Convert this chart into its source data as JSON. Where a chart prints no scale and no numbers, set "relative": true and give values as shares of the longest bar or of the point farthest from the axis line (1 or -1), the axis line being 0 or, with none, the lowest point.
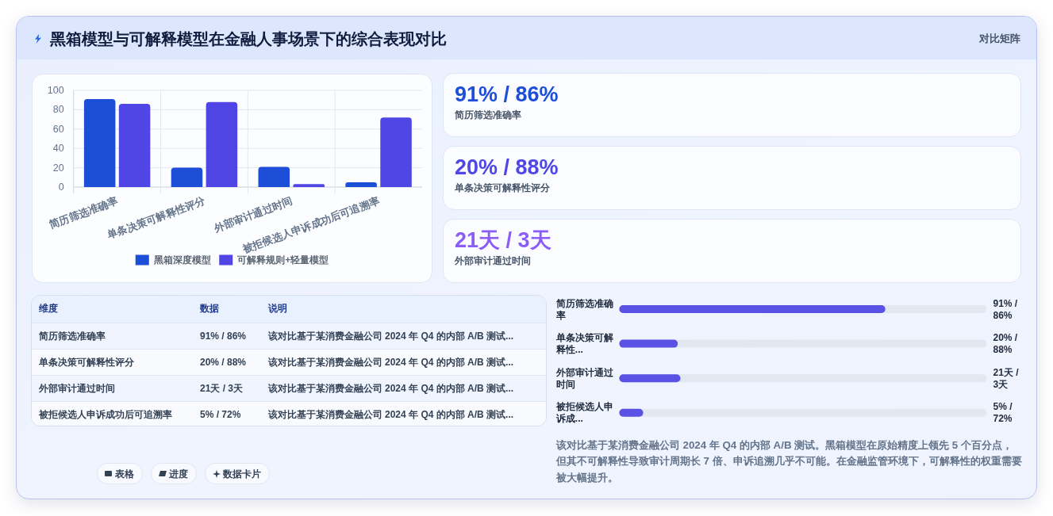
{
  "chart_data": [
    {
      "type": "other",
      "title": "黑箱模型与可解释模型在金融人事场景下的综合表现对比",
      "subtitle": "对比矩阵"
    },
    {
      "type": "bar",
      "categories": [
        "简历筛选准确率",
        "单条决策可解释性评分",
        "外部审计通过时间",
        "被拒候选人申诉成功后可追溯率"
      ],
      "series": [
        {
          "name": "黑箱深度模型",
          "color": "#1d4ed8",
          "values": [
            91,
            20,
            21,
            5
          ]
        },
        {
          "name": "可解释规则+轻量模型",
          "color": "#4f46e5",
          "values": [
            86,
            88,
            3,
            72
          ]
        }
      ],
      "ylim": [
        0,
        100
      ],
      "yticks": [
        0,
        20,
        40,
        60,
        80,
        100
      ],
      "grid": true,
      "legend": "bottom"
    },
    {
      "type": "other",
      "categories": [
        "简历筛选准确率",
        "单条决策可解释性评分",
        "外部审计通过时间"
      ],
      "value_labels": [
        "91% / 86%",
        "20% / 88%",
        "21天 / 3天"
      ]
    },
    {
      "type": "other",
      "categories": [
        "维度",
        "数据",
        "说明"
      ],
      "cell_labels": [
        [
          "简历筛选准确率",
          "91% / 86%",
          "该对比基于某消费金融公司 2024 年 Q4 的内部 A/B 测试..."
        ],
        [
          "单条决策可解释性评分",
          "20% / 88%",
          "该对比基于某消费金融公司 2024 年 Q4 的内部 A/B 测试..."
        ],
        [
          "外部审计通过时间",
          "21天 / 3天",
          "该对比基于某消费金融公司 2024 年 Q4 的内部 A/B 测试..."
        ],
        [
          "被拒候选人申诉成功后可追溯率",
          "5% / 72%",
          "该对比基于某消费金融公司 2024 年 Q4 的内部 A/B 测试..."
        ]
      ],
      "annotations": [
        "表格",
        "进度",
        "数据卡片"
      ]
    },
    {
      "type": "bar",
      "orientation": "horizontal",
      "relative": true,
      "categories": [
        "简历筛选准确率",
        "单条决策可解释性...",
        "外部审计通过时间",
        "被拒候选人申诉成..."
      ],
      "values": [
        1,
        0.22,
        0.23,
        0.09
      ],
      "color": "#5a52e4",
      "annotations": [
        "91% / 86%",
        "20% / 88%",
        "21天 / 3天",
        "5% / 72%",
        "该对比基于某消费金融公司 2024 年 Q4 的内部 A/B 测试。黑箱模型在原始精度上领先 5 个百分点，但其不可解释性导致审计周期长 7 倍、申诉追溯几乎不可能。在金融监管环境下，可解释性的权重需要被大幅提升。"
      ]
    }
  ]
}
